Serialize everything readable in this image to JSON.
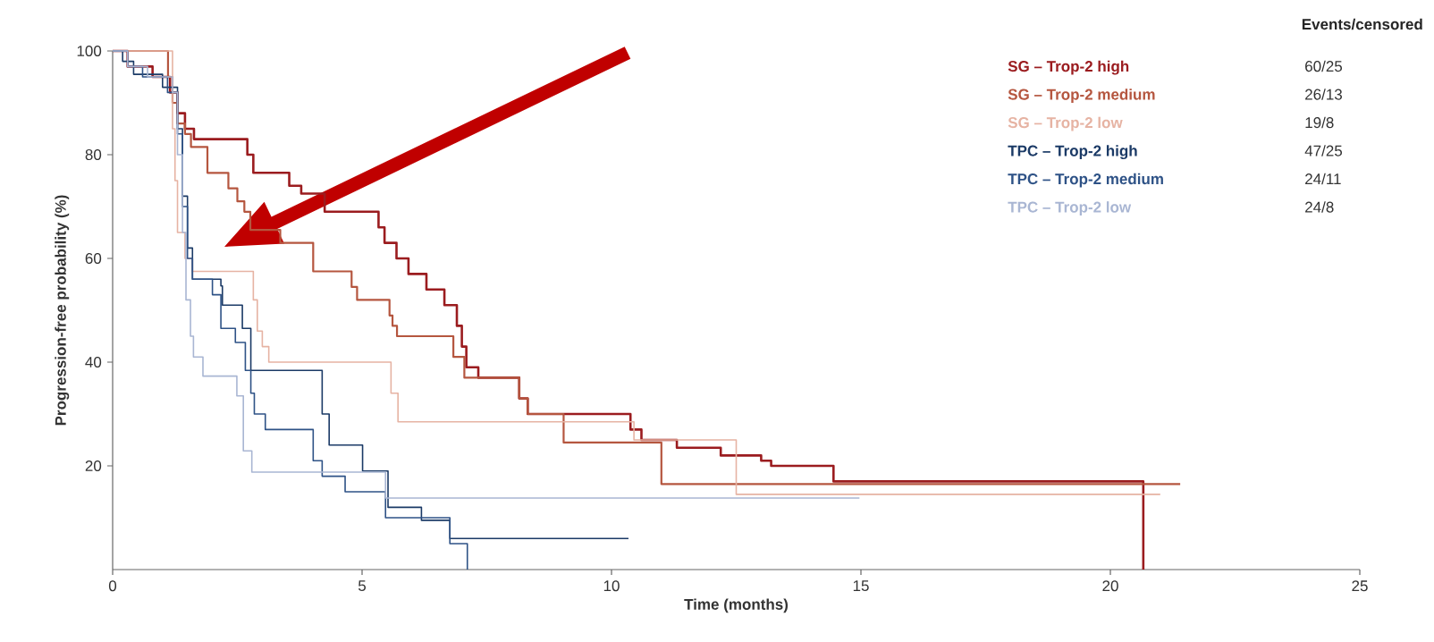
{
  "chart_data": {
    "type": "step",
    "xlabel": "Time (months)",
    "ylabel": "Progression-free probability (%)",
    "legend_title": "Events/censored",
    "annotations": [
      "60/25",
      "26/13",
      "19/8",
      "47/25",
      "24/11",
      "24/8"
    ],
    "xlim": [
      0,
      25
    ],
    "ylim": [
      0,
      100
    ],
    "xticks": [
      0,
      5,
      10,
      15,
      20,
      25
    ],
    "yticks": [
      20,
      40,
      60,
      80,
      100
    ],
    "legend": "top right",
    "grid": false,
    "marker": "none",
    "series": [
      {
        "name": "SG – Trop-2 high",
        "color": "#9b1c1f",
        "x": [
          0,
          0.3,
          0.8,
          1.15,
          1.3,
          1.45,
          1.63,
          2.7,
          2.82,
          3.54,
          3.78,
          4.25,
          5.33,
          5.45,
          5.69,
          5.93,
          6.29,
          6.65,
          6.9,
          7.0,
          7.09,
          7.33,
          8.15,
          8.32,
          10.38,
          10.6,
          11.31,
          12.19,
          13.0,
          13.2,
          14.45,
          20.66
        ],
        "values": [
          100,
          97,
          95,
          92,
          88,
          85,
          83,
          80,
          76.5,
          74,
          72.5,
          69,
          66,
          63,
          60,
          57,
          54,
          51,
          47,
          43,
          39,
          37,
          33,
          30,
          27,
          25,
          23.5,
          22,
          21,
          20,
          17,
          0
        ]
      },
      {
        "name": "SG – Trop-2 medium",
        "color": "#b5563f",
        "x": [
          0,
          1.11,
          1.2,
          1.3,
          1.45,
          1.57,
          1.9,
          2.32,
          2.5,
          2.64,
          2.76,
          3.36,
          4.02,
          4.79,
          4.9,
          5.55,
          5.61,
          5.7,
          6.83,
          7.05,
          8.15,
          8.32,
          9.04,
          11.0,
          21.4
        ],
        "values": [
          100,
          95,
          90,
          86,
          84,
          81.5,
          76.5,
          73.5,
          71,
          69,
          65.5,
          63,
          57.5,
          54.5,
          52,
          49,
          47,
          45,
          41,
          37,
          33,
          30,
          24.5,
          16.5,
          16.5
        ]
      },
      {
        "name": "SG – Trop-2 low",
        "color": "#e6b3a3",
        "x": [
          0,
          1.2,
          1.25,
          1.3,
          1.45,
          1.6,
          2.82,
          2.9,
          3.0,
          3.13,
          5.58,
          5.72,
          10.45,
          12.5,
          21.0
        ],
        "values": [
          100,
          85,
          75,
          65,
          60,
          57.5,
          52,
          46,
          43,
          40,
          34,
          28.5,
          25,
          14.5,
          14.5
        ]
      },
      {
        "name": "TPC – Trop-2 high",
        "color": "#1b3a66",
        "x": [
          0,
          0.2,
          0.42,
          1.0,
          1.3,
          1.4,
          1.5,
          1.6,
          2.17,
          2.2,
          2.6,
          2.77,
          4.2,
          4.34,
          5.01,
          5.52,
          6.19,
          6.76,
          10.34
        ],
        "values": [
          100,
          98,
          95.5,
          93,
          85,
          72,
          62,
          56,
          54.7,
          51,
          46.5,
          38.4,
          30,
          24,
          19,
          12,
          9.5,
          6,
          6
        ]
      },
      {
        "name": "TPC – Trop-2 medium",
        "color": "#2e5286",
        "x": [
          0,
          0.3,
          0.6,
          1.1,
          1.3,
          1.4,
          1.5,
          1.6,
          2.0,
          2.17,
          2.46,
          2.66,
          2.77,
          2.84,
          3.06,
          4.02,
          4.2,
          4.66,
          5.47,
          6.76,
          7.11
        ],
        "values": [
          100,
          97,
          95,
          92,
          84,
          70,
          60,
          56,
          53,
          46.5,
          43.8,
          38.4,
          34,
          30,
          27,
          21,
          18,
          15,
          10,
          5,
          0
        ]
      },
      {
        "name": "TPC – Trop-2 low",
        "color": "#a9b6d3",
        "x": [
          0,
          0.3,
          0.7,
          1.2,
          1.3,
          1.4,
          1.47,
          1.56,
          1.62,
          1.81,
          2.49,
          2.62,
          2.79,
          5.47,
          14.97
        ],
        "values": [
          100,
          97,
          95,
          92,
          80,
          65,
          52,
          45,
          41,
          37.3,
          33.5,
          22.9,
          18.8,
          13.8,
          13.8
        ]
      }
    ]
  }
}
